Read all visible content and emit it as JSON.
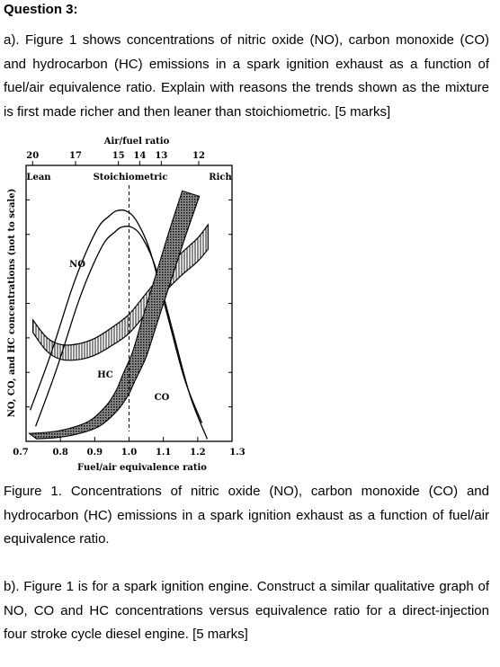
{
  "question": {
    "title": "Question 3:",
    "part_a": "a). Figure 1 shows concentrations of nitric oxide (NO), carbon monoxide (CO) and hydrocarbon (HC) emissions in a spark ignition exhaust as a function of fuel/air equivalence ratio. Explain with reasons the trends shown as the mixture is first made richer and then leaner than stoichiometric. [5 marks]",
    "caption": "Figure 1. Concentrations of nitric oxide (NO), carbon monoxide (CO) and hydrocarbon (HC) emissions in a spark ignition exhaust as a function of fuel/air equivalence ratio.",
    "part_b": "b). Figure 1 is for a spark ignition engine. Construct a similar qualitative graph of NO, CO and HC concentrations versus equivalence ratio for a direct-injection four stroke cycle diesel engine. [5 marks]"
  },
  "chart_data": {
    "type": "line",
    "title": "",
    "top_axis_label": "Air/fuel ratio",
    "top_ticks": [
      "20",
      "17",
      "15",
      "14",
      "13",
      "12"
    ],
    "top_ticks_x": [
      0.719,
      0.844,
      0.969,
      1.031,
      1.094,
      1.203
    ],
    "xlabel": "Fuel/air equivalence ratio",
    "ylabel": "NO, CO, and HC concentrations (not to scale)",
    "x_ticks": [
      "0.7",
      "0.8",
      "0.9",
      "1.0",
      "1.1",
      "1.2",
      "1.3"
    ],
    "x_tick_values": [
      0.7,
      0.8,
      0.9,
      1.0,
      1.1,
      1.2,
      1.3
    ],
    "xlim": [
      0.7,
      1.3
    ],
    "ylim": [
      0,
      1
    ],
    "annotations": {
      "lean": "Lean",
      "stoich": "Stoichiometric",
      "rich": "Rich"
    },
    "series": [
      {
        "name": "NO",
        "band": true,
        "x": [
          0.72,
          0.78,
          0.84,
          0.88,
          0.92,
          0.95,
          0.97,
          1.0,
          1.03,
          1.07,
          1.12,
          1.17,
          1.22
        ],
        "y": [
          0.08,
          0.3,
          0.55,
          0.69,
          0.8,
          0.84,
          0.86,
          0.86,
          0.82,
          0.7,
          0.45,
          0.2,
          0.03
        ]
      },
      {
        "name": "HC",
        "band": true,
        "x": [
          0.72,
          0.76,
          0.8,
          0.85,
          0.9,
          0.95,
          1.0,
          1.05,
          1.1,
          1.15,
          1.2,
          1.23
        ],
        "y": [
          0.44,
          0.37,
          0.34,
          0.34,
          0.36,
          0.4,
          0.45,
          0.53,
          0.61,
          0.68,
          0.74,
          0.79
        ]
      },
      {
        "name": "CO",
        "band": true,
        "x": [
          0.72,
          0.78,
          0.84,
          0.9,
          0.95,
          0.98,
          1.0,
          1.03,
          1.06,
          1.1,
          1.14,
          1.18
        ],
        "y": [
          0.01,
          0.015,
          0.03,
          0.06,
          0.12,
          0.18,
          0.24,
          0.33,
          0.46,
          0.63,
          0.8,
          0.96
        ]
      }
    ],
    "grid": false,
    "legend": "none"
  }
}
